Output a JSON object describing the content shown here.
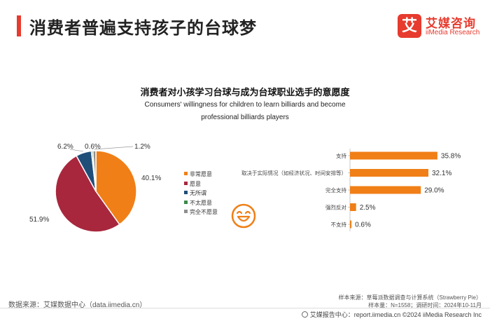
{
  "page_title": "消费者普遍支持孩子的台球梦",
  "logo": {
    "mark": "艾",
    "cn": "艾媒咨询",
    "en": "iiMedia Research"
  },
  "chart_title": "消费者对小孩学习台球与成为台球职业选手的意愿度",
  "chart_subtitle": "Consumers' willingness for children to learn billiards and become professional billiards players",
  "colors": {
    "title_accent": "#e63b2e",
    "orange": "#f07f17",
    "crimson": "#a8273d",
    "navy": "#1f4e79",
    "green": "#3b8a4b",
    "gray": "#8f8f8f"
  },
  "chart_data": [
    {
      "type": "pie",
      "slices": [
        {
          "label": "非常愿意",
          "value": 40.1,
          "value_label": "40.1%",
          "color": "#f07f17"
        },
        {
          "label": "愿意",
          "value": 51.9,
          "value_label": "51.9%",
          "color": "#a8273d"
        },
        {
          "label": "无所谓",
          "value": 6.2,
          "value_label": "6.2%",
          "color": "#1f4e79"
        },
        {
          "label": "不太愿意",
          "value": 0.6,
          "value_label": "0.6%",
          "color": "#3b8a4b"
        },
        {
          "label": "完全不愿意",
          "value": 1.2,
          "value_label": "1.2%",
          "color": "#8f8f8f"
        }
      ],
      "legend_position": "right"
    },
    {
      "type": "bar",
      "orientation": "horizontal",
      "categories": [
        "支持",
        "取决于实际情况（如经济状况、时间安排等）",
        "完全支持",
        "强烈反对",
        "不支持"
      ],
      "values": [
        35.8,
        32.1,
        29.0,
        2.5,
        0.6
      ],
      "value_labels": [
        "35.8%",
        "32.1%",
        "29.0%",
        "2.5%",
        "0.6%"
      ],
      "color": "#f07f17",
      "xlim": [
        0,
        40
      ]
    }
  ],
  "smiley_icon": "smiley-face-icon",
  "source_left": "数据来源：艾媒数据中心（data.iimedia.cn）",
  "source_right_1": "样本来源：草莓派数据调查与计算系统（Strawberry Pie）",
  "source_right_2": "样本量：N=1558；调研时间：2024年10-11月",
  "footer": "艾媒报告中心：report.iimedia.cn  ©2024  iiMedia Research  Inc"
}
